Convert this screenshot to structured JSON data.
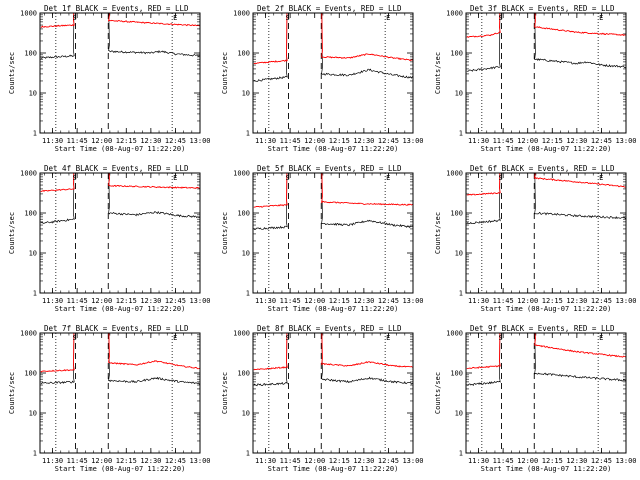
{
  "colors": {
    "events": "#000000",
    "lld": "#ff0000",
    "background": "#ffffff",
    "axes": "#000000"
  },
  "shared": {
    "ylabel": "Counts/sec",
    "xlabel": "Start Time (08-Aug-07 11:22:20)",
    "x_ticks": [
      "11:30",
      "11:45",
      "12:00",
      "12:15",
      "12:30",
      "12:45",
      "13:00"
    ],
    "y_ticks": [
      "1",
      "10",
      "100",
      "1000"
    ],
    "marker_S": "S",
    "marker_E": "E"
  },
  "chart_data": [
    {
      "type": "line",
      "title": "Det 1f BLACK = Events, RED = LLD",
      "xlabel": "Start Time (08-Aug-07 11:22:20)",
      "ylabel": "Counts/sec",
      "yscale": "log",
      "ylim": [
        1,
        1000
      ],
      "xlim": [
        "11:22:20",
        "13:00"
      ],
      "vlines_dotted": [
        "11:32",
        "12:43"
      ],
      "vlines_dashed": [
        "11:44",
        "12:04"
      ],
      "labels": {
        "S": "11:44",
        "E": "12:43"
      },
      "series": [
        {
          "color": "#000000",
          "pre": [
            [
              11.38,
              75
            ],
            [
              11.72,
              85
            ]
          ],
          "post": [
            [
              12.07,
              110
            ],
            [
              12.5,
              100
            ],
            [
              12.6,
              110
            ],
            [
              12.75,
              95
            ],
            [
              13.0,
              85
            ]
          ]
        },
        {
          "color": "#ff0000",
          "pre": [
            [
              11.38,
              450
            ],
            [
              11.72,
              500
            ]
          ],
          "post": [
            [
              12.07,
              650
            ],
            [
              12.5,
              560
            ],
            [
              13.0,
              480
            ]
          ]
        }
      ]
    },
    {
      "type": "line",
      "title": "Det 2f BLACK = Events, RED = LLD",
      "xlabel": "Start Time (08-Aug-07 11:22:20)",
      "ylabel": "Counts/sec",
      "yscale": "log",
      "ylim": [
        1,
        1000
      ],
      "xlim": [
        "11:22:20",
        "13:00"
      ],
      "vlines_dotted": [
        "11:32",
        "12:43"
      ],
      "vlines_dashed": [
        "11:44",
        "12:04"
      ],
      "labels": {
        "S": "11:44",
        "E": "12:43"
      },
      "series": [
        {
          "color": "#000000",
          "pre": [
            [
              11.38,
              20
            ],
            [
              11.72,
              25
            ]
          ],
          "post": [
            [
              12.07,
              30
            ],
            [
              12.35,
              28
            ],
            [
              12.55,
              38
            ],
            [
              12.8,
              28
            ],
            [
              13.0,
              24
            ]
          ]
        },
        {
          "color": "#ff0000",
          "pre": [
            [
              11.38,
              55
            ],
            [
              11.72,
              65
            ]
          ],
          "post": [
            [
              12.07,
              80
            ],
            [
              12.35,
              75
            ],
            [
              12.55,
              95
            ],
            [
              12.8,
              75
            ],
            [
              13.0,
              65
            ]
          ]
        }
      ]
    },
    {
      "type": "line",
      "title": "Det 3f BLACK = Events, RED = LLD",
      "xlabel": "Start Time (08-Aug-07 11:22:20)",
      "ylabel": "Counts/sec",
      "yscale": "log",
      "ylim": [
        1,
        1000
      ],
      "xlim": [
        "11:22:20",
        "13:00"
      ],
      "vlines_dotted": [
        "11:32",
        "12:43"
      ],
      "vlines_dashed": [
        "11:44",
        "12:04"
      ],
      "labels": {
        "S": "11:44",
        "E": "12:43"
      },
      "series": [
        {
          "color": "#000000",
          "pre": [
            [
              11.38,
              35
            ],
            [
              11.72,
              45
            ]
          ],
          "post": [
            [
              12.07,
              70
            ],
            [
              12.5,
              55
            ],
            [
              12.6,
              60
            ],
            [
              12.75,
              50
            ],
            [
              13.0,
              45
            ]
          ]
        },
        {
          "color": "#ff0000",
          "pre": [
            [
              11.38,
              250
            ],
            [
              11.62,
              280
            ],
            [
              11.72,
              330
            ]
          ],
          "post": [
            [
              12.07,
              450
            ],
            [
              12.5,
              330
            ],
            [
              13.0,
              280
            ]
          ]
        }
      ]
    },
    {
      "type": "line",
      "title": "Det 4f BLACK = Events, RED = LLD",
      "xlabel": "Start Time (08-Aug-07 11:22:20)",
      "ylabel": "Counts/sec",
      "yscale": "log",
      "ylim": [
        1,
        1000
      ],
      "xlim": [
        "11:22:20",
        "13:00"
      ],
      "vlines_dotted": [
        "11:32",
        "12:43"
      ],
      "vlines_dashed": [
        "11:44",
        "12:04"
      ],
      "labels": {
        "S": "11:44",
        "E": "12:43"
      },
      "series": [
        {
          "color": "#000000",
          "pre": [
            [
              11.38,
              55
            ],
            [
              11.72,
              70
            ]
          ],
          "post": [
            [
              12.07,
              100
            ],
            [
              12.35,
              90
            ],
            [
              12.55,
              105
            ],
            [
              12.8,
              85
            ],
            [
              13.0,
              80
            ]
          ]
        },
        {
          "color": "#ff0000",
          "pre": [
            [
              11.38,
              350
            ],
            [
              11.72,
              400
            ]
          ],
          "post": [
            [
              12.07,
              480
            ],
            [
              12.5,
              450
            ],
            [
              13.0,
              420
            ]
          ]
        }
      ]
    },
    {
      "type": "line",
      "title": "Det 5f BLACK = Events, RED = LLD",
      "xlabel": "Start Time (08-Aug-07 11:22:20)",
      "ylabel": "Counts/sec",
      "yscale": "log",
      "ylim": [
        1,
        1000
      ],
      "xlim": [
        "11:22:20",
        "13:00"
      ],
      "vlines_dotted": [
        "11:32",
        "12:43"
      ],
      "vlines_dashed": [
        "11:44",
        "12:04"
      ],
      "labels": {
        "S": "11:44",
        "E": "12:43"
      },
      "series": [
        {
          "color": "#000000",
          "pre": [
            [
              11.38,
              40
            ],
            [
              11.72,
              45
            ]
          ],
          "post": [
            [
              12.07,
              55
            ],
            [
              12.35,
              50
            ],
            [
              12.55,
              65
            ],
            [
              12.8,
              50
            ],
            [
              13.0,
              45
            ]
          ]
        },
        {
          "color": "#ff0000",
          "pre": [
            [
              11.38,
              140
            ],
            [
              11.72,
              160
            ]
          ],
          "post": [
            [
              12.07,
              190
            ],
            [
              12.5,
              170
            ],
            [
              13.0,
              160
            ]
          ]
        }
      ]
    },
    {
      "type": "line",
      "title": "Det 6f BLACK = Events, RED = LLD",
      "xlabel": "Start Time (08-Aug-07 11:22:20)",
      "ylabel": "Counts/sec",
      "yscale": "log",
      "ylim": [
        1,
        1000
      ],
      "xlim": [
        "11:22:20",
        "13:00"
      ],
      "vlines_dotted": [
        "11:32",
        "12:43"
      ],
      "vlines_dashed": [
        "11:44",
        "12:04"
      ],
      "labels": {
        "S": "11:44",
        "E": "12:43"
      },
      "series": [
        {
          "color": "#000000",
          "pre": [
            [
              11.38,
              55
            ],
            [
              11.72,
              65
            ]
          ],
          "post": [
            [
              12.07,
              100
            ],
            [
              12.5,
              85
            ],
            [
              13.0,
              75
            ]
          ]
        },
        {
          "color": "#ff0000",
          "pre": [
            [
              11.38,
              280
            ],
            [
              11.72,
              320
            ]
          ],
          "post": [
            [
              12.07,
              750
            ],
            [
              12.5,
              600
            ],
            [
              13.0,
              450
            ]
          ]
        }
      ]
    },
    {
      "type": "line",
      "title": "Det 7f BLACK = Events, RED = LLD",
      "xlabel": "Start Time (08-Aug-07 11:22:20)",
      "ylabel": "Counts/sec",
      "yscale": "log",
      "ylim": [
        1,
        1000
      ],
      "xlim": [
        "11:22:20",
        "13:00"
      ],
      "vlines_dotted": [
        "11:32",
        "12:43"
      ],
      "vlines_dashed": [
        "11:44",
        "12:04"
      ],
      "labels": {
        "S": "11:44",
        "E": "12:43"
      },
      "series": [
        {
          "color": "#000000",
          "pre": [
            [
              11.38,
              55
            ],
            [
              11.72,
              60
            ]
          ],
          "post": [
            [
              12.07,
              65
            ],
            [
              12.35,
              60
            ],
            [
              12.55,
              75
            ],
            [
              12.8,
              60
            ],
            [
              13.0,
              55
            ]
          ]
        },
        {
          "color": "#ff0000",
          "pre": [
            [
              11.38,
              110
            ],
            [
              11.72,
              120
            ]
          ],
          "post": [
            [
              12.07,
              180
            ],
            [
              12.35,
              160
            ],
            [
              12.55,
              200
            ],
            [
              12.8,
              150
            ],
            [
              13.0,
              130
            ]
          ]
        }
      ]
    },
    {
      "type": "line",
      "title": "Det 8f BLACK = Events, RED = LLD",
      "xlabel": "Start Time (08-Aug-07 11:22:20)",
      "ylabel": "Counts/sec",
      "yscale": "log",
      "ylim": [
        1,
        1000
      ],
      "xlim": [
        "11:22:20",
        "13:00"
      ],
      "vlines_dotted": [
        "11:32",
        "12:43"
      ],
      "vlines_dashed": [
        "11:44",
        "12:04"
      ],
      "labels": {
        "S": "11:44",
        "E": "12:43"
      },
      "series": [
        {
          "color": "#000000",
          "pre": [
            [
              11.38,
              50
            ],
            [
              11.72,
              55
            ]
          ],
          "post": [
            [
              12.07,
              70
            ],
            [
              12.35,
              60
            ],
            [
              12.55,
              75
            ],
            [
              12.8,
              60
            ],
            [
              13.0,
              55
            ]
          ]
        },
        {
          "color": "#ff0000",
          "pre": [
            [
              11.38,
              120
            ],
            [
              11.72,
              140
            ]
          ],
          "post": [
            [
              12.07,
              170
            ],
            [
              12.35,
              150
            ],
            [
              12.55,
              190
            ],
            [
              12.8,
              150
            ],
            [
              13.0,
              140
            ]
          ]
        }
      ]
    },
    {
      "type": "line",
      "title": "Det 9f BLACK = Events, RED = LLD",
      "xlabel": "Start Time (08-Aug-07 11:22:20)",
      "ylabel": "Counts/sec",
      "yscale": "log",
      "ylim": [
        1,
        1000
      ],
      "xlim": [
        "11:22:20",
        "13:00"
      ],
      "vlines_dotted": [
        "11:32",
        "12:43"
      ],
      "vlines_dashed": [
        "11:44",
        "12:04"
      ],
      "labels": {
        "S": "11:44",
        "E": "12:43"
      },
      "series": [
        {
          "color": "#000000",
          "pre": [
            [
              11.38,
              50
            ],
            [
              11.72,
              60
            ]
          ],
          "post": [
            [
              12.07,
              100
            ],
            [
              12.5,
              80
            ],
            [
              13.0,
              65
            ]
          ]
        },
        {
          "color": "#ff0000",
          "pre": [
            [
              11.38,
              130
            ],
            [
              11.72,
              150
            ]
          ],
          "post": [
            [
              12.07,
              500
            ],
            [
              12.5,
              340
            ],
            [
              13.0,
              250
            ]
          ]
        }
      ]
    }
  ]
}
